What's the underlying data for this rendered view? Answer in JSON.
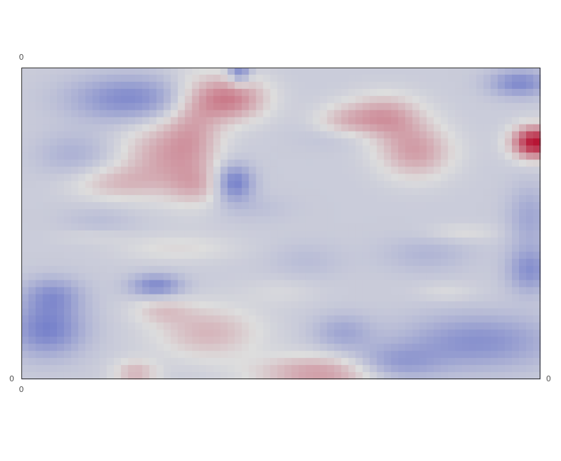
{
  "chart_data": {
    "type": "heatmap",
    "title": "",
    "xlabel": "",
    "ylabel": "",
    "tick_labels": {
      "top": "0",
      "left": "0",
      "right": "0",
      "bottom": "0"
    },
    "colorscale": {
      "low": "#3b4cc0",
      "mid": "#dddddd",
      "high": "#b40426"
    },
    "value_range": [
      -1,
      1
    ],
    "grid": false,
    "features": [
      {
        "x": 0.4,
        "y": 0.9,
        "sx": 0.05,
        "sy": 0.05,
        "a": 0.55
      },
      {
        "x": 0.33,
        "y": 0.78,
        "sx": 0.04,
        "sy": 0.12,
        "a": 0.35
      },
      {
        "x": 0.26,
        "y": 0.72,
        "sx": 0.05,
        "sy": 0.08,
        "a": 0.3
      },
      {
        "x": 0.18,
        "y": 0.63,
        "sx": 0.06,
        "sy": 0.04,
        "a": 0.25
      },
      {
        "x": 0.34,
        "y": 0.62,
        "sx": 0.04,
        "sy": 0.04,
        "a": 0.2
      },
      {
        "x": 0.7,
        "y": 0.84,
        "sx": 0.05,
        "sy": 0.05,
        "a": 0.42
      },
      {
        "x": 0.76,
        "y": 0.73,
        "sx": 0.05,
        "sy": 0.06,
        "a": 0.4
      },
      {
        "x": 0.99,
        "y": 0.76,
        "sx": 0.03,
        "sy": 0.035,
        "a": 1.05
      },
      {
        "x": 0.62,
        "y": 0.82,
        "sx": 0.04,
        "sy": 0.04,
        "a": 0.25
      },
      {
        "x": 0.36,
        "y": 0.15,
        "sx": 0.07,
        "sy": 0.06,
        "a": 0.3
      },
      {
        "x": 0.27,
        "y": 0.22,
        "sx": 0.04,
        "sy": 0.03,
        "a": 0.2
      },
      {
        "x": 0.58,
        "y": 0.02,
        "sx": 0.09,
        "sy": 0.04,
        "a": 0.42
      },
      {
        "x": 0.22,
        "y": 0.02,
        "sx": 0.03,
        "sy": 0.03,
        "a": 0.3
      },
      {
        "x": 0.3,
        "y": 0.42,
        "sx": 0.08,
        "sy": 0.03,
        "a": 0.14
      },
      {
        "x": 0.14,
        "y": 0.46,
        "sx": 0.05,
        "sy": 0.02,
        "a": 0.1
      },
      {
        "x": 0.85,
        "y": 0.47,
        "sx": 0.05,
        "sy": 0.02,
        "a": 0.12
      },
      {
        "x": 0.82,
        "y": 0.28,
        "sx": 0.04,
        "sy": 0.02,
        "a": 0.1
      },
      {
        "x": 0.5,
        "y": 0.28,
        "sx": 0.05,
        "sy": 0.03,
        "a": 0.08
      },
      {
        "x": 0.21,
        "y": 0.9,
        "sx": 0.08,
        "sy": 0.05,
        "a": -0.45
      },
      {
        "x": 0.41,
        "y": 0.63,
        "sx": 0.025,
        "sy": 0.04,
        "a": -0.55
      },
      {
        "x": 0.96,
        "y": 0.95,
        "sx": 0.04,
        "sy": 0.03,
        "a": -0.45
      },
      {
        "x": 0.42,
        "y": 0.99,
        "sx": 0.015,
        "sy": 0.03,
        "a": -0.5
      },
      {
        "x": 0.05,
        "y": 0.16,
        "sx": 0.05,
        "sy": 0.06,
        "a": -0.5
      },
      {
        "x": 0.06,
        "y": 0.27,
        "sx": 0.04,
        "sy": 0.04,
        "a": -0.35
      },
      {
        "x": 0.26,
        "y": 0.3,
        "sx": 0.035,
        "sy": 0.025,
        "a": -0.45
      },
      {
        "x": 0.98,
        "y": 0.35,
        "sx": 0.03,
        "sy": 0.05,
        "a": -0.4
      },
      {
        "x": 0.98,
        "y": 0.52,
        "sx": 0.03,
        "sy": 0.07,
        "a": -0.25
      },
      {
        "x": 0.88,
        "y": 0.12,
        "sx": 0.1,
        "sy": 0.06,
        "a": -0.4
      },
      {
        "x": 0.72,
        "y": 0.05,
        "sx": 0.06,
        "sy": 0.04,
        "a": -0.35
      },
      {
        "x": 0.62,
        "y": 0.15,
        "sx": 0.04,
        "sy": 0.04,
        "a": -0.25
      },
      {
        "x": 0.62,
        "y": 0.78,
        "sx": 0.05,
        "sy": 0.03,
        "a": -0.15
      },
      {
        "x": 0.1,
        "y": 0.72,
        "sx": 0.05,
        "sy": 0.05,
        "a": -0.18
      },
      {
        "x": 0.78,
        "y": 0.4,
        "sx": 0.06,
        "sy": 0.04,
        "a": -0.15
      },
      {
        "x": 0.55,
        "y": 0.38,
        "sx": 0.05,
        "sy": 0.04,
        "a": -0.1
      },
      {
        "x": 0.15,
        "y": 0.5,
        "sx": 0.05,
        "sy": 0.04,
        "a": -0.1
      },
      {
        "x": 0.45,
        "y": 0.55,
        "sx": 0.05,
        "sy": 0.03,
        "a": -0.08
      }
    ]
  }
}
